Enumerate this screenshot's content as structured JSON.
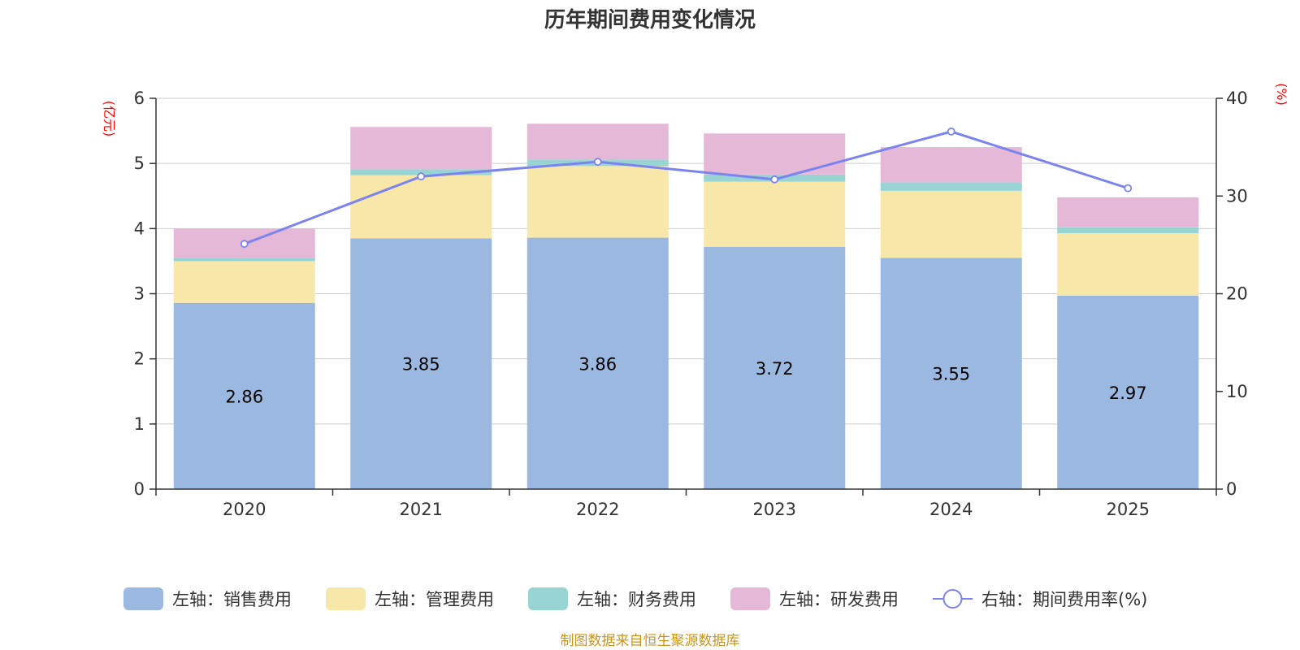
{
  "chart_data": {
    "type": "bar",
    "title": "历年期间费用变化情况",
    "categories": [
      "2020",
      "2021",
      "2022",
      "2023",
      "2024",
      "2025"
    ],
    "left_axis": {
      "unit": "(亿元)",
      "ticks": [
        "0",
        "1",
        "2",
        "3",
        "4",
        "5",
        "6"
      ],
      "ylim": [
        0,
        6
      ]
    },
    "right_axis": {
      "unit": "(%)",
      "ticks": [
        "0",
        "10",
        "20",
        "30",
        "40"
      ],
      "ylim": [
        0,
        40
      ]
    },
    "series": [
      {
        "name": "左轴：销售费用",
        "type": "bar",
        "stack": "left",
        "color": "#9bb8e1",
        "values": [
          2.86,
          3.85,
          3.86,
          3.72,
          3.55,
          2.97
        ],
        "labels": [
          "2.86",
          "3.85",
          "3.86",
          "3.72",
          "3.55",
          "2.97"
        ]
      },
      {
        "name": "左轴：管理费用",
        "type": "bar",
        "stack": "left",
        "color": "#f7e7a8",
        "values": [
          0.64,
          0.97,
          1.1,
          1.0,
          1.03,
          0.96
        ]
      },
      {
        "name": "左轴：财务费用",
        "type": "bar",
        "stack": "left",
        "color": "#98d4d3",
        "values": [
          0.05,
          0.09,
          0.1,
          0.11,
          0.13,
          0.09
        ]
      },
      {
        "name": "左轴：研发费用",
        "type": "bar",
        "stack": "left",
        "color": "#e6b8d8",
        "values": [
          0.45,
          0.65,
          0.55,
          0.63,
          0.54,
          0.46
        ]
      },
      {
        "name": "右轴：期间费用率(%)",
        "type": "line",
        "axis": "right",
        "color": "#7b83ef",
        "values": [
          25.1,
          32.0,
          33.5,
          31.7,
          36.6,
          30.8
        ]
      }
    ],
    "legend_position": "bottom",
    "grid": true
  },
  "source": "制图数据来自恒生聚源数据库"
}
